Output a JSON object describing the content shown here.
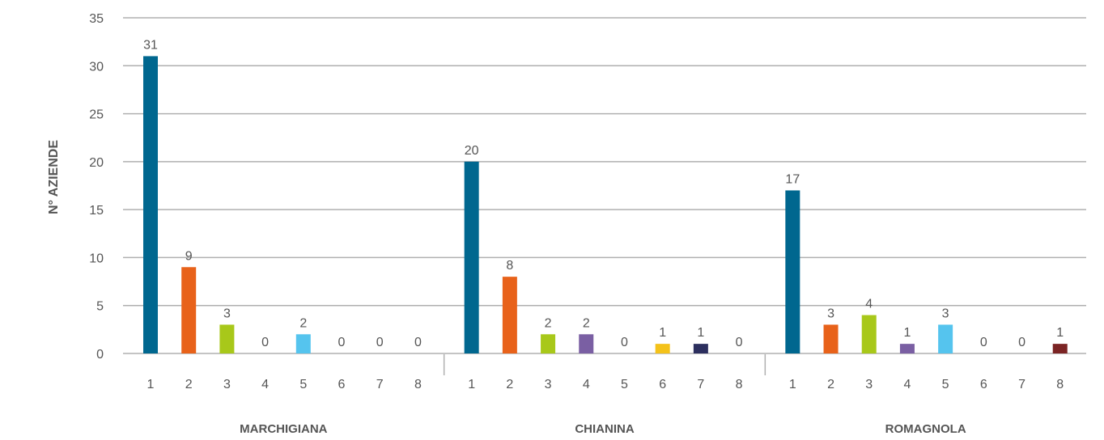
{
  "chart_data": {
    "type": "bar",
    "ylabel": "N° AZIENDE",
    "ylim": [
      0,
      35
    ],
    "yticks": [
      0,
      5,
      10,
      15,
      20,
      25,
      30,
      35
    ],
    "grid": true,
    "legend": "none",
    "subcategories": [
      "1",
      "2",
      "3",
      "4",
      "5",
      "6",
      "7",
      "8"
    ],
    "colors": [
      "#00678f",
      "#e8621a",
      "#a8c81a",
      "#7a5fa3",
      "#55c4ee",
      "#f4c21a",
      "#2c2f5e",
      "#7b2424"
    ],
    "groups": [
      {
        "name": "MARCHIGIANA",
        "values": [
          31,
          9,
          3,
          0,
          2,
          0,
          0,
          0
        ]
      },
      {
        "name": "CHIANINA",
        "values": [
          20,
          8,
          2,
          2,
          0,
          1,
          1,
          0
        ]
      },
      {
        "name": "ROMAGNOLA",
        "values": [
          17,
          3,
          4,
          1,
          3,
          0,
          0,
          1
        ]
      }
    ]
  }
}
